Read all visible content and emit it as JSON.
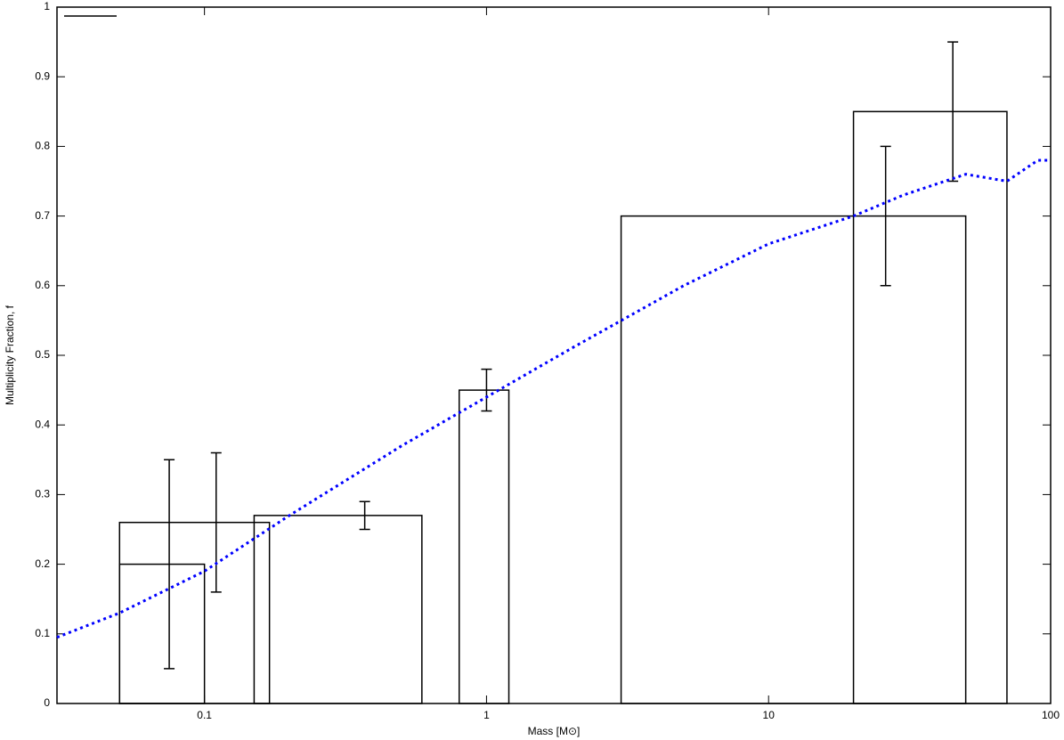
{
  "chart_data": {
    "type": "bar",
    "xlabel": "Mass [M⊙]",
    "ylabel": "Multiplicity Fraction, f",
    "xscale": "log",
    "xlim": [
      0.03,
      100
    ],
    "ylim": [
      0,
      1
    ],
    "xticks": [
      0.1,
      1,
      10,
      100
    ],
    "yticks": [
      0,
      0.1,
      0.2,
      0.3,
      0.4,
      0.5,
      0.6,
      0.7,
      0.8,
      0.9,
      1
    ],
    "bars": {
      "color": "#000000",
      "left": [
        0.05,
        0.05,
        0.15,
        0.8,
        3,
        20
      ],
      "right": [
        0.1,
        0.17,
        0.59,
        1.2,
        50,
        70
      ],
      "values": [
        0.2,
        0.26,
        0.27,
        0.45,
        0.7,
        0.85
      ]
    },
    "errorbars": {
      "color": "#000000",
      "x": [
        0.075,
        0.11,
        0.37,
        1,
        26,
        45
      ],
      "values": [
        0.2,
        0.26,
        0.27,
        0.45,
        0.7,
        0.85
      ],
      "errors": [
        0.15,
        0.1,
        0.02,
        0.03,
        0.1,
        0.1
      ]
    },
    "series": [
      {
        "type": "line",
        "color": "#0000ff",
        "x": [
          0.03,
          0.05,
          0.1,
          0.2,
          0.5,
          1,
          2,
          5,
          10,
          20,
          30,
          50,
          70,
          90,
          100
        ],
        "values": [
          0.095,
          0.13,
          0.19,
          0.27,
          0.37,
          0.44,
          0.51,
          0.6,
          0.66,
          0.7,
          0.73,
          0.76,
          0.75,
          0.78,
          0.78
        ]
      }
    ]
  }
}
